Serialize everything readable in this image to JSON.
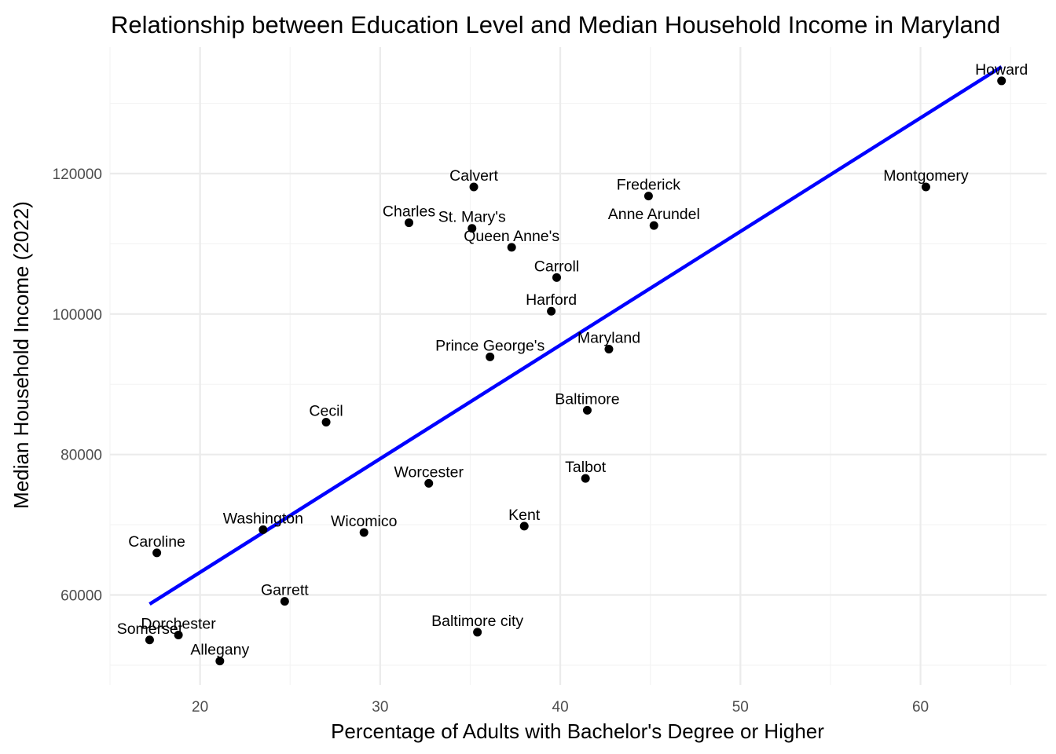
{
  "chart_data": {
    "type": "scatter",
    "title": "Relationship between Education Level and Median Household Income in Maryland",
    "xlabel": "Percentage of Adults with Bachelor's Degree or Higher",
    "ylabel": "Median Household Income (2022)",
    "xlim": [
      15,
      67
    ],
    "ylim": [
      47200,
      138000
    ],
    "x_ticks": [
      20,
      30,
      40,
      50,
      60
    ],
    "x_minor_ticks": [
      15,
      25,
      35,
      45,
      55,
      65
    ],
    "y_ticks": [
      60000,
      80000,
      100000,
      120000
    ],
    "y_minor_ticks": [
      50000,
      70000,
      90000,
      110000,
      130000
    ],
    "x_tick_labels": [
      "20",
      "30",
      "40",
      "50",
      "60"
    ],
    "y_tick_labels": [
      "60000",
      "80000",
      "100000",
      "120000"
    ],
    "grid": true,
    "point_color": "#000000",
    "trend_line": {
      "color": "#0000ff",
      "x": [
        17.2,
        64.5
      ],
      "y": [
        58700,
        135200
      ]
    },
    "points": [
      {
        "label": "Howard",
        "x": 64.5,
        "y": 133200
      },
      {
        "label": "Montgomery",
        "x": 60.3,
        "y": 118100
      },
      {
        "label": "Frederick",
        "x": 44.9,
        "y": 116800
      },
      {
        "label": "Anne Arundel",
        "x": 45.2,
        "y": 112600
      },
      {
        "label": "Calvert",
        "x": 35.2,
        "y": 118100
      },
      {
        "label": "Charles",
        "x": 31.6,
        "y": 113000
      },
      {
        "label": "St. Mary's",
        "x": 35.1,
        "y": 112200
      },
      {
        "label": "Queen Anne's",
        "x": 37.3,
        "y": 109500
      },
      {
        "label": "Carroll",
        "x": 39.8,
        "y": 105200
      },
      {
        "label": "Harford",
        "x": 39.5,
        "y": 100400
      },
      {
        "label": "Maryland",
        "x": 42.7,
        "y": 95000
      },
      {
        "label": "Prince George's",
        "x": 36.1,
        "y": 93900
      },
      {
        "label": "Baltimore",
        "x": 41.5,
        "y": 86300
      },
      {
        "label": "Cecil",
        "x": 27.0,
        "y": 84600
      },
      {
        "label": "Talbot",
        "x": 41.4,
        "y": 76600
      },
      {
        "label": "Worcester",
        "x": 32.7,
        "y": 75900
      },
      {
        "label": "Kent",
        "x": 38.0,
        "y": 69800
      },
      {
        "label": "Washington",
        "x": 23.5,
        "y": 69300
      },
      {
        "label": "Wicomico",
        "x": 29.1,
        "y": 68900
      },
      {
        "label": "Caroline",
        "x": 17.6,
        "y": 66000
      },
      {
        "label": "Garrett",
        "x": 24.7,
        "y": 59100
      },
      {
        "label": "Baltimore city",
        "x": 35.4,
        "y": 54700
      },
      {
        "label": "Dorchester",
        "x": 18.8,
        "y": 54300
      },
      {
        "label": "Somerset",
        "x": 17.2,
        "y": 53600
      },
      {
        "label": "Allegany",
        "x": 21.1,
        "y": 50600
      }
    ]
  }
}
